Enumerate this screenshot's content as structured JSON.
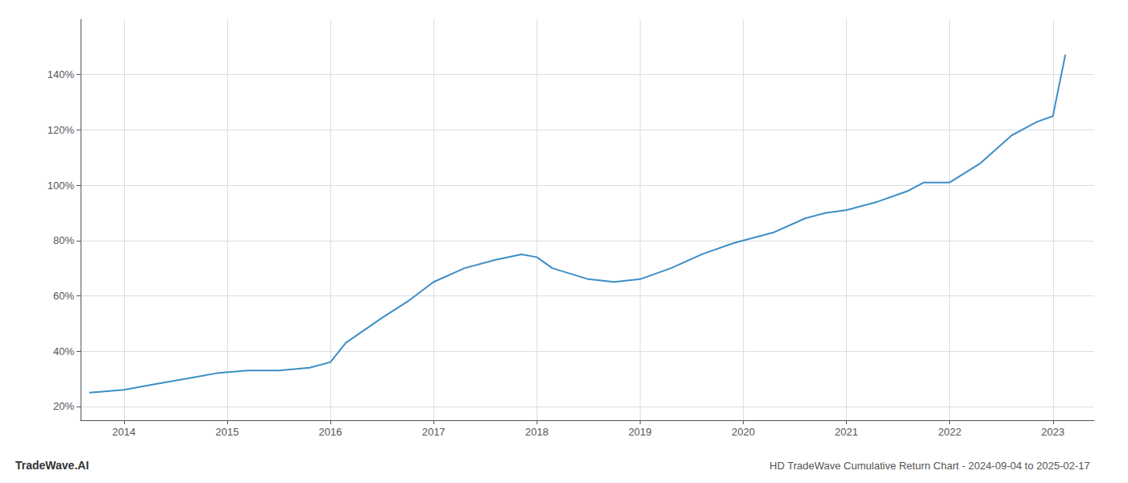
{
  "chart_data": {
    "type": "line",
    "title": "HD TradeWave Cumulative Return Chart - 2024-09-04 to 2025-02-17",
    "annotations": [
      {
        "text": "TradeWave.AI"
      }
    ],
    "color": "#3d8fc7",
    "x": [
      2013.67,
      2014.0,
      2014.3,
      2014.6,
      2014.9,
      2015.2,
      2015.5,
      2015.8,
      2016.0,
      2016.15,
      2016.5,
      2016.75,
      2017.0,
      2017.3,
      2017.6,
      2017.85,
      2018.0,
      2018.15,
      2018.5,
      2018.75,
      2019.0,
      2019.3,
      2019.6,
      2019.9,
      2020.0,
      2020.3,
      2020.6,
      2020.8,
      2021.0,
      2021.3,
      2021.6,
      2021.75,
      2022.0,
      2022.3,
      2022.6,
      2022.85,
      2023.0,
      2023.12
    ],
    "values": [
      25,
      26,
      28,
      30,
      32,
      33,
      33,
      34,
      36,
      43,
      52,
      58,
      65,
      70,
      73,
      75,
      74,
      70,
      66,
      65,
      66,
      70,
      75,
      79,
      80,
      83,
      88,
      90,
      91,
      94,
      98,
      101,
      101,
      108,
      118,
      123,
      125,
      147
    ],
    "xlim": [
      2013.58,
      2023.4
    ],
    "xticks": [
      2014,
      2015,
      2016,
      2017,
      2018,
      2019,
      2020,
      2021,
      2022,
      2023
    ],
    "ylim": [
      15,
      160
    ],
    "yticks": [
      {
        "value": 20,
        "label": "20%"
      },
      {
        "value": 40,
        "label": "40%"
      },
      {
        "value": 60,
        "label": "60%"
      },
      {
        "value": 80,
        "label": "80%"
      },
      {
        "value": 100,
        "label": "100%"
      },
      {
        "value": 120,
        "label": "120%"
      },
      {
        "value": 140,
        "label": "140%"
      }
    ],
    "grid": true
  }
}
